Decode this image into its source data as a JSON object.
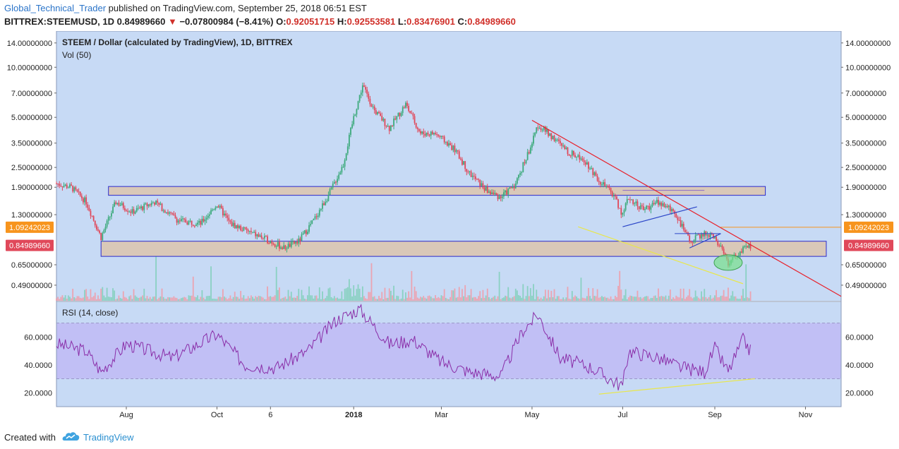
{
  "header": {
    "author": "Global_Technical_Trader",
    "published": "published on TradingView.com, September 25, 2018 06:51 EST",
    "symbol": "BITTREX:STEEMUSD, 1D",
    "last": "0.84989660",
    "arrow": "▼",
    "change": "−0.07800984 (−8.41%)",
    "open_label": "O:",
    "open": "0.92051715",
    "high_label": "H:",
    "high": "0.92553581",
    "low_label": "L:",
    "low": "0.83476901",
    "close_label": "C:",
    "close": "0.84989660"
  },
  "footer": {
    "created_with": "Created with",
    "brand": "TradingView"
  },
  "colors": {
    "pane_bg": "#c7daf5",
    "rsi_band": "#c1bff5",
    "up": "#3daa7c",
    "down": "#e0485a",
    "zone_fill": "#dcc4ad",
    "zone_stroke": "#2b2bcc",
    "trend_red": "#e8202a",
    "trend_yellow": "#e9e74a",
    "trend_blue": "#2b45c8",
    "rsi_line": "#8a2ea8",
    "highlight_green": "#78e08a",
    "label_orange": "#f7941d",
    "label_red": "#e0485a"
  },
  "chart_data": {
    "type": "candlestick",
    "title": "STEEM / Dollar (calculated by TradingView), 1D, BITTREX",
    "volume_label": "Vol (50)",
    "rsi_label": "RSI (14, close)",
    "y_scale": "log",
    "y_ticks": [
      "14.00000000",
      "10.00000000",
      "7.00000000",
      "5.00000000",
      "3.50000000",
      "2.50000000",
      "1.90000000",
      "1.30000000",
      "0.65000000",
      "0.49000000"
    ],
    "y_tick_values": [
      14,
      10,
      7,
      5,
      3.5,
      2.5,
      1.9,
      1.3,
      0.65,
      0.49
    ],
    "price_labels": [
      {
        "text": "1.09242023",
        "value": 1.09242023,
        "color": "orange"
      },
      {
        "text": "0.84989660",
        "value": 0.8498966,
        "color": "red"
      }
    ],
    "rsi_ticks": [
      "60.0000",
      "40.0000",
      "20.0000"
    ],
    "rsi_tick_values": [
      60,
      40,
      20
    ],
    "rsi_band": [
      30,
      70
    ],
    "x_ticks": [
      "Aug",
      "Oct",
      "6",
      "2018",
      "Mar",
      "May",
      "Jul",
      "Sep",
      "Nov"
    ],
    "x_tick_dates": [
      "2017-08-01",
      "2017-10-01",
      "2017-11-06",
      "2018-01-01",
      "2018-03-01",
      "2018-05-01",
      "2018-07-01",
      "2018-09-01",
      "2018-11-01"
    ],
    "x_range": [
      "2017-06-15",
      "2018-11-25"
    ],
    "price_path": [
      [
        "2017-06-15",
        2.0
      ],
      [
        "2017-06-25",
        1.9
      ],
      [
        "2017-07-05",
        1.55
      ],
      [
        "2017-07-15",
        0.95
      ],
      [
        "2017-07-25",
        1.55
      ],
      [
        "2017-08-05",
        1.35
      ],
      [
        "2017-08-20",
        1.55
      ],
      [
        "2017-09-05",
        1.2
      ],
      [
        "2017-09-20",
        1.15
      ],
      [
        "2017-10-01",
        1.5
      ],
      [
        "2017-10-10",
        1.15
      ],
      [
        "2017-10-25",
        1.0
      ],
      [
        "2017-11-06",
        0.9
      ],
      [
        "2017-11-15",
        0.82
      ],
      [
        "2017-11-25",
        0.9
      ],
      [
        "2017-12-05",
        1.2
      ],
      [
        "2017-12-15",
        1.7
      ],
      [
        "2017-12-25",
        2.6
      ],
      [
        "2018-01-01",
        5.0
      ],
      [
        "2018-01-07",
        7.8
      ],
      [
        "2018-01-15",
        5.5
      ],
      [
        "2018-01-25",
        4.3
      ],
      [
        "2018-02-05",
        6.0
      ],
      [
        "2018-02-15",
        4.0
      ],
      [
        "2018-02-25",
        4.0
      ],
      [
        "2018-03-10",
        3.2
      ],
      [
        "2018-03-20",
        2.3
      ],
      [
        "2018-04-01",
        1.8
      ],
      [
        "2018-04-10",
        1.65
      ],
      [
        "2018-04-20",
        2.0
      ],
      [
        "2018-05-01",
        3.5
      ],
      [
        "2018-05-05",
        4.5
      ],
      [
        "2018-05-15",
        3.8
      ],
      [
        "2018-05-25",
        3.1
      ],
      [
        "2018-06-05",
        2.8
      ],
      [
        "2018-06-15",
        2.1
      ],
      [
        "2018-06-25",
        1.7
      ],
      [
        "2018-07-01",
        1.3
      ],
      [
        "2018-07-05",
        1.65
      ],
      [
        "2018-07-15",
        1.4
      ],
      [
        "2018-07-25",
        1.55
      ],
      [
        "2018-08-05",
        1.35
      ],
      [
        "2018-08-15",
        0.9
      ],
      [
        "2018-08-25",
        1.0
      ],
      [
        "2018-09-01",
        0.95
      ],
      [
        "2018-09-10",
        0.67
      ],
      [
        "2018-09-18",
        0.78
      ],
      [
        "2018-09-25",
        0.85
      ]
    ],
    "rsi_path": [
      [
        "2017-06-15",
        55
      ],
      [
        "2017-07-05",
        50
      ],
      [
        "2017-07-15",
        35
      ],
      [
        "2017-08-01",
        55
      ],
      [
        "2017-09-01",
        45
      ],
      [
        "2017-10-01",
        62
      ],
      [
        "2017-10-20",
        40
      ],
      [
        "2017-11-10",
        38
      ],
      [
        "2017-12-01",
        50
      ],
      [
        "2017-12-20",
        72
      ],
      [
        "2018-01-05",
        80
      ],
      [
        "2018-01-25",
        55
      ],
      [
        "2018-02-10",
        58
      ],
      [
        "2018-03-01",
        42
      ],
      [
        "2018-03-20",
        35
      ],
      [
        "2018-04-10",
        32
      ],
      [
        "2018-04-25",
        65
      ],
      [
        "2018-05-05",
        76
      ],
      [
        "2018-05-20",
        45
      ],
      [
        "2018-06-10",
        38
      ],
      [
        "2018-06-25",
        28
      ],
      [
        "2018-07-01",
        25
      ],
      [
        "2018-07-05",
        50
      ],
      [
        "2018-07-25",
        45
      ],
      [
        "2018-08-10",
        38
      ],
      [
        "2018-08-25",
        35
      ],
      [
        "2018-09-01",
        52
      ],
      [
        "2018-09-10",
        35
      ],
      [
        "2018-09-20",
        58
      ],
      [
        "2018-09-25",
        50
      ]
    ],
    "zones": [
      {
        "from": "2017-07-20",
        "to": "2018-10-05",
        "low": 1.7,
        "high": 1.92
      },
      {
        "from": "2017-07-15",
        "to": "2018-11-15",
        "low": 0.73,
        "high": 0.9
      }
    ],
    "trendlines": [
      {
        "color": "red",
        "from": [
          "2018-05-01",
          4.8
        ],
        "to": [
          "2018-11-25",
          0.42
        ]
      },
      {
        "color": "yellow",
        "from": [
          "2018-06-01",
          1.1
        ],
        "to": [
          "2018-09-20",
          0.5
        ]
      },
      {
        "color": "blue",
        "from": [
          "2018-07-01",
          1.1
        ],
        "to": [
          "2018-08-20",
          1.45
        ]
      },
      {
        "color": "blue",
        "from": [
          "2018-08-15",
          0.82
        ],
        "to": [
          "2018-09-05",
          1.0
        ]
      },
      {
        "color": "rsi_yellow",
        "from": [
          "2018-06-15",
          19
        ],
        "to": [
          "2018-09-28",
          30
        ]
      }
    ],
    "grid": false,
    "legend": "top-left"
  }
}
